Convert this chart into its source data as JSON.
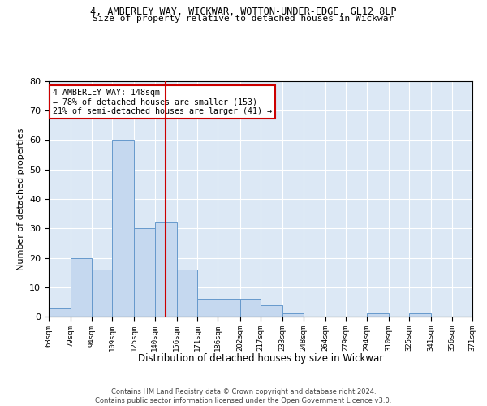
{
  "title_line1": "4, AMBERLEY WAY, WICKWAR, WOTTON-UNDER-EDGE, GL12 8LP",
  "title_line2": "Size of property relative to detached houses in Wickwar",
  "xlabel": "Distribution of detached houses by size in Wickwar",
  "ylabel": "Number of detached properties",
  "bins": [
    63,
    79,
    94,
    109,
    125,
    140,
    156,
    171,
    186,
    202,
    217,
    233,
    248,
    264,
    279,
    294,
    310,
    325,
    341,
    356,
    371
  ],
  "bar_heights": [
    3,
    20,
    16,
    60,
    30,
    32,
    16,
    6,
    6,
    6,
    4,
    1,
    0,
    0,
    0,
    1,
    0,
    1,
    0,
    0
  ],
  "bar_color": "#c5d8ef",
  "bar_edge_color": "#6699cc",
  "property_size": 148,
  "property_label": "4 AMBERLEY WAY: 148sqm",
  "annotation_line1": "← 78% of detached houses are smaller (153)",
  "annotation_line2": "21% of semi-detached houses are larger (41) →",
  "vline_color": "#cc0000",
  "annotation_box_color": "#cc0000",
  "ylim": [
    0,
    80
  ],
  "yticks": [
    0,
    10,
    20,
    30,
    40,
    50,
    60,
    70,
    80
  ],
  "background_color": "#dce8f5",
  "footer_text": "Contains HM Land Registry data © Crown copyright and database right 2024.\nContains public sector information licensed under the Open Government Licence v3.0.",
  "tick_labels": [
    "63sqm",
    "79sqm",
    "94sqm",
    "109sqm",
    "125sqm",
    "140sqm",
    "156sqm",
    "171sqm",
    "186sqm",
    "202sqm",
    "217sqm",
    "233sqm",
    "248sqm",
    "264sqm",
    "279sqm",
    "294sqm",
    "310sqm",
    "325sqm",
    "341sqm",
    "356sqm",
    "371sqm"
  ]
}
